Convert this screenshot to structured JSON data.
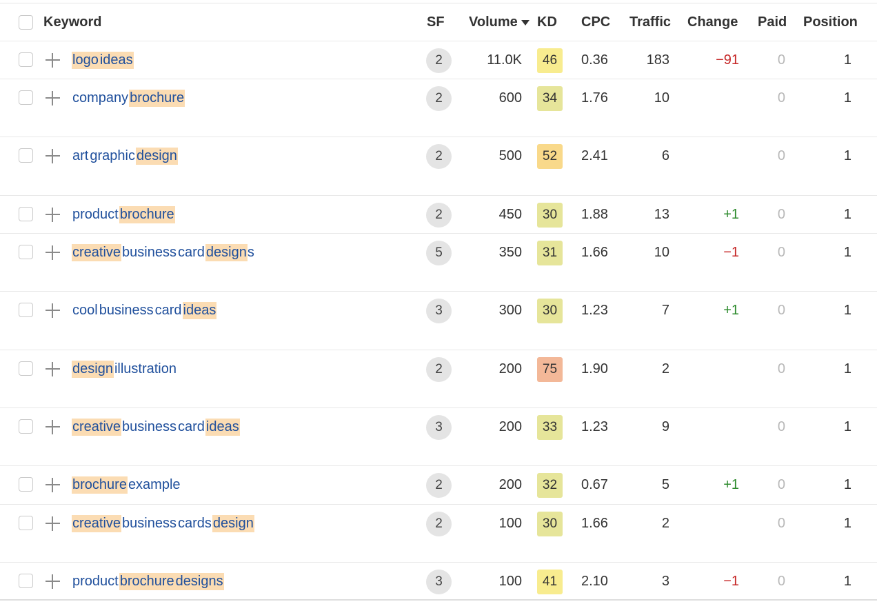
{
  "header": {
    "keyword": "Keyword",
    "sf": "SF",
    "volume": "Volume",
    "kd": "KD",
    "cpc": "CPC",
    "traffic": "Traffic",
    "change": "Change",
    "paid": "Paid",
    "position": "Position"
  },
  "sort_icon": "triangle-down-icon",
  "colors": {
    "keyword_link": "#1f4f9c",
    "highlight": "#fbdcb3",
    "change_negative": "#c62828",
    "change_positive": "#2e8b2e",
    "paid_zero": "#b8b8b8",
    "kd_low": "#e6e59a",
    "kd_mid": "#f8ec8f",
    "kd_high": "#f9d98a",
    "kd_very_high": "#f3b898"
  },
  "rows": [
    {
      "words": [
        {
          "t": "logo",
          "hl": true
        },
        {
          "t": "ideas",
          "hl": true
        }
      ],
      "sf": "2",
      "volume": "11.0K",
      "kd": "46",
      "kd_color": "#f8ec8f",
      "cpc": "0.36",
      "traffic": "183",
      "change": "−91",
      "change_dir": "neg",
      "paid": "0",
      "position": "1"
    },
    {
      "words": [
        {
          "t": "company",
          "hl": false
        },
        {
          "t": "brochure",
          "hl": true
        }
      ],
      "sf": "2",
      "volume": "600",
      "kd": "34",
      "kd_color": "#e6e59a",
      "cpc": "1.76",
      "traffic": "10",
      "change": "",
      "change_dir": "",
      "paid": "0",
      "position": "1"
    },
    {
      "words": [
        {
          "t": "art",
          "hl": false
        },
        {
          "t": "graphic",
          "hl": false
        },
        {
          "t": "design",
          "hl": true
        }
      ],
      "sf": "2",
      "volume": "500",
      "kd": "52",
      "kd_color": "#f9d98a",
      "cpc": "2.41",
      "traffic": "6",
      "change": "",
      "change_dir": "",
      "paid": "0",
      "position": "1"
    },
    {
      "words": [
        {
          "t": "product",
          "hl": false
        },
        {
          "t": "brochure",
          "hl": true
        }
      ],
      "sf": "2",
      "volume": "450",
      "kd": "30",
      "kd_color": "#e6e59a",
      "cpc": "1.88",
      "traffic": "13",
      "change": "+1",
      "change_dir": "pos",
      "paid": "0",
      "position": "1"
    },
    {
      "words": [
        {
          "t": "creative",
          "hl": true
        },
        {
          "t": "business",
          "hl": false
        },
        {
          "t": "card",
          "hl": false
        },
        {
          "t": "design",
          "hl": true,
          "suffix": "s"
        }
      ],
      "sf": "5",
      "volume": "350",
      "kd": "31",
      "kd_color": "#e6e59a",
      "cpc": "1.66",
      "traffic": "10",
      "change": "−1",
      "change_dir": "neg",
      "paid": "0",
      "position": "1"
    },
    {
      "words": [
        {
          "t": "cool",
          "hl": false
        },
        {
          "t": "business",
          "hl": false
        },
        {
          "t": "card",
          "hl": false
        },
        {
          "t": "ideas",
          "hl": true
        }
      ],
      "sf": "3",
      "volume": "300",
      "kd": "30",
      "kd_color": "#e6e59a",
      "cpc": "1.23",
      "traffic": "7",
      "change": "+1",
      "change_dir": "pos",
      "paid": "0",
      "position": "1"
    },
    {
      "words": [
        {
          "t": "design",
          "hl": true
        },
        {
          "t": "illustration",
          "hl": false
        }
      ],
      "sf": "2",
      "volume": "200",
      "kd": "75",
      "kd_color": "#f3b898",
      "cpc": "1.90",
      "traffic": "2",
      "change": "",
      "change_dir": "",
      "paid": "0",
      "position": "1"
    },
    {
      "words": [
        {
          "t": "creative",
          "hl": true
        },
        {
          "t": "business",
          "hl": false
        },
        {
          "t": "card",
          "hl": false
        },
        {
          "t": "ideas",
          "hl": true
        }
      ],
      "sf": "3",
      "volume": "200",
      "kd": "33",
      "kd_color": "#e6e59a",
      "cpc": "1.23",
      "traffic": "9",
      "change": "",
      "change_dir": "",
      "paid": "0",
      "position": "1"
    },
    {
      "words": [
        {
          "t": "brochure",
          "hl": true
        },
        {
          "t": "example",
          "hl": false
        }
      ],
      "sf": "2",
      "volume": "200",
      "kd": "32",
      "kd_color": "#e6e59a",
      "cpc": "0.67",
      "traffic": "5",
      "change": "+1",
      "change_dir": "pos",
      "paid": "0",
      "position": "1"
    },
    {
      "words": [
        {
          "t": "creative",
          "hl": true
        },
        {
          "t": "business",
          "hl": false
        },
        {
          "t": "cards",
          "hl": false
        },
        {
          "t": "design",
          "hl": true
        }
      ],
      "sf": "2",
      "volume": "100",
      "kd": "30",
      "kd_color": "#e6e59a",
      "cpc": "1.66",
      "traffic": "2",
      "change": "",
      "change_dir": "",
      "paid": "0",
      "position": "1"
    },
    {
      "words": [
        {
          "t": "product",
          "hl": false
        },
        {
          "t": "brochure",
          "hl": true
        },
        {
          "t": "designs",
          "hl": true
        }
      ],
      "sf": "3",
      "volume": "100",
      "kd": "41",
      "kd_color": "#f8ec8f",
      "cpc": "2.10",
      "traffic": "3",
      "change": "−1",
      "change_dir": "neg",
      "paid": "0",
      "position": "1"
    }
  ]
}
